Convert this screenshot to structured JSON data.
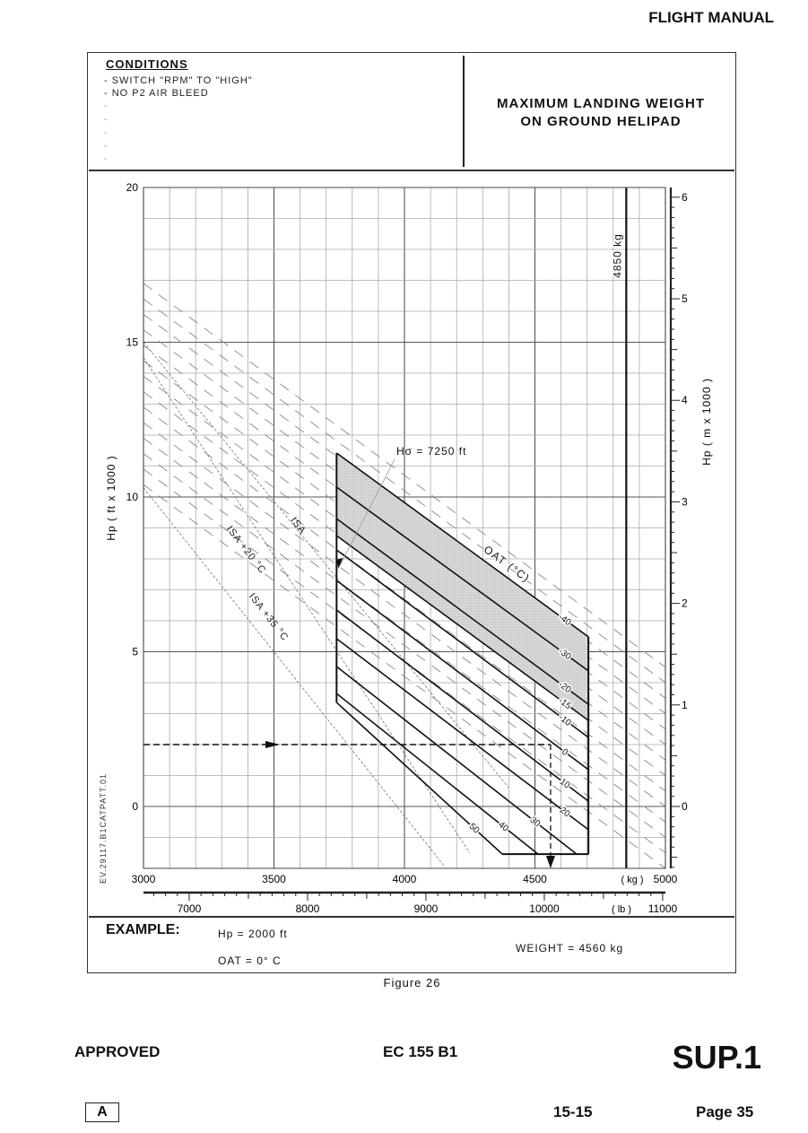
{
  "page": {
    "header": "FLIGHT MANUAL",
    "figure_label": "Figure 26",
    "footer": {
      "approved": "APPROVED",
      "model": "EC 155 B1",
      "supplement": "SUP.1",
      "revision": "A",
      "section": "15-15",
      "page": "Page 35"
    },
    "reference_code": "EV.29117.B1CATPATT.01"
  },
  "conditions": {
    "title": "CONDITIONS",
    "items": [
      "- SWITCH \"RPM\" TO \"HIGH\"",
      "- NO P2 AIR BLEED"
    ],
    "empty_bullets": [
      "-",
      "-",
      "-",
      "-",
      "-"
    ]
  },
  "chart_title": {
    "line1": "MAXIMUM LANDING WEIGHT",
    "line2": "ON GROUND HELIPAD"
  },
  "example": {
    "title": "EXAMPLE:",
    "hp": "Hp = 2000 ft",
    "oat": "OAT  = 0° C",
    "weight": "WEIGHT = 4560 kg"
  },
  "chart_data": {
    "type": "line",
    "xlabel_kg": "( kg )",
    "xlabel_lb": "( lb )",
    "ylabel_left": "Hp ( ft x 1000 )",
    "ylabel_right": "Hp ( m x 1000 )",
    "xlim_kg": [
      3000,
      5000
    ],
    "ylim_ft_thousands": [
      -2,
      20
    ],
    "x_ticks_kg": [
      3000,
      3500,
      4000,
      4500,
      5000
    ],
    "x_ticks_lb": [
      7000,
      8000,
      9000,
      10000,
      11000
    ],
    "y_ticks_left": [
      0,
      5,
      10,
      15,
      20
    ],
    "y_ticks_right": [
      0,
      1,
      2,
      3,
      4,
      5,
      6
    ],
    "grid": true,
    "oat_label": "OAT (°C)",
    "series": [
      {
        "name": "-40",
        "points": [
          [
            3740,
            11.42
          ],
          [
            4705,
            5.48
          ]
        ]
      },
      {
        "name": "-30",
        "points": [
          [
            3740,
            10.32
          ],
          [
            4705,
            4.38
          ]
        ]
      },
      {
        "name": "-20",
        "points": [
          [
            3740,
            9.3
          ],
          [
            4705,
            3.3
          ]
        ]
      },
      {
        "name": "-15",
        "points": [
          [
            3740,
            8.75
          ],
          [
            4705,
            2.78
          ]
        ]
      },
      {
        "name": "-10",
        "points": [
          [
            3740,
            8.29
          ],
          [
            4705,
            2.23
          ]
        ]
      },
      {
        "name": "0",
        "points": [
          [
            3740,
            7.3
          ],
          [
            4705,
            1.19
          ]
        ]
      },
      {
        "name": "10",
        "points": [
          [
            3740,
            6.35
          ],
          [
            4705,
            0.17
          ]
        ]
      },
      {
        "name": "20",
        "points": [
          [
            3740,
            5.42
          ],
          [
            4705,
            -0.75
          ]
        ]
      },
      {
        "name": "30",
        "points": [
          [
            3740,
            4.52
          ],
          [
            4660,
            -1.54
          ]
        ]
      },
      {
        "name": "40",
        "points": [
          [
            3740,
            3.65
          ],
          [
            4512,
            -1.54
          ]
        ]
      },
      {
        "name": "50",
        "points": [
          [
            3740,
            3.36
          ],
          [
            4375,
            -1.54
          ]
        ]
      }
    ],
    "envelope": {
      "left_kg": 3740,
      "right_kg": 4705,
      "bottom_hp": -1.54
    },
    "shaded_between": [
      "-40",
      "-15"
    ],
    "max_weight_line": {
      "kg": 4850,
      "label": "4850 kg"
    },
    "h_sigma": {
      "label": "Hσ = 7250 ft",
      "hp": 7.8
    },
    "isa_lines": [
      {
        "name": "ISA",
        "points": [
          [
            3000,
            15.0
          ],
          [
            4400,
            0.6
          ]
        ]
      },
      {
        "name": "ISA +20 °C",
        "points": [
          [
            3000,
            14.5
          ],
          [
            4250,
            -1.5
          ]
        ]
      },
      {
        "name": "ISA +35 °C",
        "points": [
          [
            3000,
            10.3
          ],
          [
            4150,
            -1.9
          ]
        ]
      }
    ],
    "density_lines_start_hp": [
      16.9,
      16.4,
      15.9,
      15.4,
      14.9,
      14.4,
      13.9,
      13.4,
      12.9,
      12.4,
      11.9,
      11.4,
      10.9,
      10.4
    ],
    "density_slope_hp_per_1000kg": -6.2,
    "example_path": {
      "hp": 2.0,
      "oat": 0,
      "weight_kg": 4560
    }
  }
}
